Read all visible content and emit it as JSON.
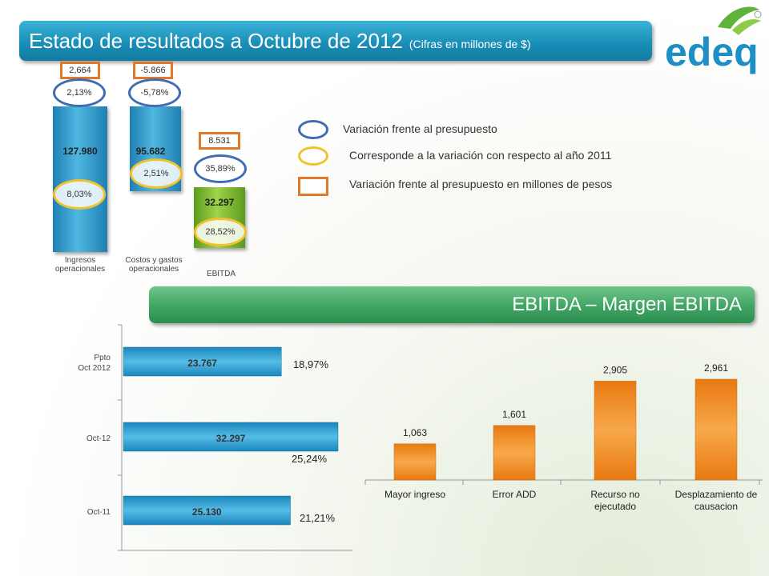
{
  "header": {
    "title": "Estado de resultados a Octubre de 2012",
    "subtitle": "(Cifras en millones de $)",
    "logo_text": "edeq"
  },
  "top_chart": {
    "bars": [
      {
        "label": "Ingresos operacionales",
        "value": "127.980",
        "variance_pesos": "2,664",
        "variance_budget": "2,13%",
        "variance_2011": "8,03%"
      },
      {
        "label": "Costos y gastos operacionales",
        "value": "95.682",
        "variance_pesos": "-5.866",
        "variance_budget": "-5,78%",
        "variance_2011": "2,51%"
      },
      {
        "label": "EBITDA",
        "value": "32.297",
        "variance_pesos": "8.531",
        "variance_budget": "35,89%",
        "variance_2011": "28,52%"
      }
    ]
  },
  "legend": {
    "blue_circle": "Variación frente al presupuesto",
    "yellow_circle": "Corresponde a la variación con respecto al año 2011",
    "orange_box": "Variación frente al presupuesto en millones de pesos"
  },
  "section": {
    "title": "EBITDA – Margen EBITDA"
  },
  "chart_data": [
    {
      "type": "bar",
      "orientation": "horizontal",
      "categories": [
        "Ppto Oct 2012",
        "Oct-12",
        "Oct-11"
      ],
      "category_lines": [
        [
          "Ppto",
          "Oct 2012"
        ],
        [
          "Oct-12"
        ],
        [
          "Oct-11"
        ]
      ],
      "values": [
        23767,
        32297,
        25130
      ],
      "value_labels": [
        "23.767",
        "32.297",
        "25.130"
      ],
      "margins": [
        "18,97%",
        "25,24%",
        "21,21%"
      ],
      "color": "#2a9fd6"
    },
    {
      "type": "bar",
      "categories": [
        "Mayor ingreso",
        "Error ADD",
        "Recurso no ejecutado",
        "Desplazamiento de causacion"
      ],
      "category_lines": [
        [
          "Mayor ingreso"
        ],
        [
          "Error ADD"
        ],
        [
          "Recurso no",
          "ejecutado"
        ],
        [
          "Desplazamiento de",
          "causacion"
        ]
      ],
      "values": [
        1.063,
        1.601,
        2.905,
        2.961
      ],
      "value_labels": [
        "1,063",
        "1,601",
        "2,905",
        "2,961"
      ],
      "color": "#f08a1c"
    }
  ]
}
